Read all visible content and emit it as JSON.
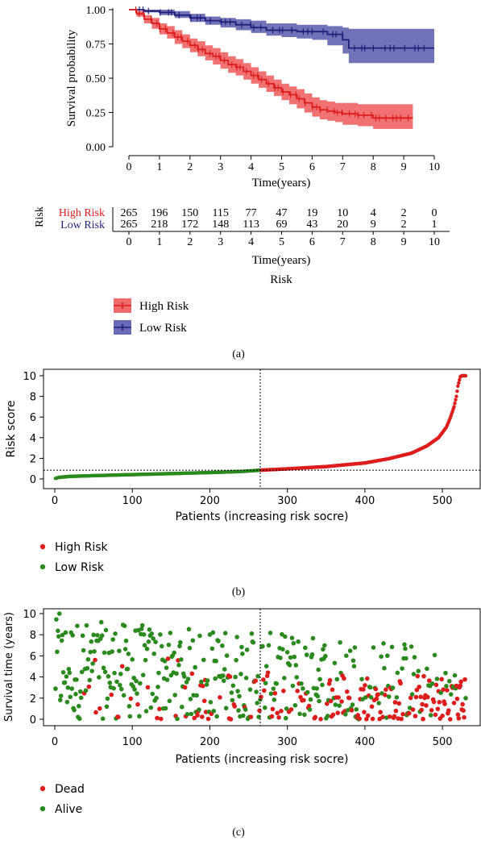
{
  "colors": {
    "high": "#dd1c1c",
    "low": "#1f1f7a",
    "high_band": "#ef6a6a",
    "low_band": "#6a6ab4",
    "alive": "#2a8a1e",
    "dead": "#dd1c1c",
    "axis": "#000000"
  },
  "panel_a": {
    "caption": "(a)",
    "km": {
      "type": "line",
      "xlabel": "Time(years)",
      "ylabel": "Survival probability",
      "xticks": [
        "0",
        "1",
        "2",
        "3",
        "4",
        "5",
        "6",
        "7",
        "8",
        "9",
        "10"
      ],
      "yticks": [
        "0.00",
        "0.25",
        "0.50",
        "0.75",
        "1.00"
      ],
      "xlim": [
        0,
        10
      ],
      "ylim": [
        0,
        1
      ]
    },
    "risk_table": {
      "title": "Risk",
      "xlabel": "Time(years)",
      "rows": [
        {
          "label": "High Risk",
          "counts": [
            "265",
            "196",
            "150",
            "115",
            "77",
            "47",
            "19",
            "10",
            "4",
            "2",
            "0"
          ]
        },
        {
          "label": "Low Risk",
          "counts": [
            "265",
            "218",
            "172",
            "148",
            "113",
            "69",
            "43",
            "20",
            "9",
            "2",
            "1"
          ]
        }
      ]
    },
    "legend": {
      "title": "Risk",
      "items": [
        "High Risk",
        "Low Risk"
      ]
    }
  },
  "panel_b": {
    "caption": "(b)",
    "xlabel": "Patients (increasing risk socre)",
    "ylabel": "Risk score",
    "xticks": [
      "0",
      "100",
      "200",
      "300",
      "400",
      "500"
    ],
    "yticks": [
      "0",
      "2",
      "4",
      "6",
      "8",
      "10"
    ],
    "legend": [
      "High Risk",
      "Low Risk"
    ]
  },
  "panel_c": {
    "caption": "(c)",
    "xlabel": "Patients (increasing risk socre)",
    "ylabel": "Survival time (years)",
    "xticks": [
      "0",
      "100",
      "200",
      "300",
      "400",
      "500"
    ],
    "yticks": [
      "0",
      "2",
      "4",
      "6",
      "8",
      "10"
    ],
    "legend": [
      "Dead",
      "Alive"
    ]
  },
  "chart_data": [
    {
      "type": "line",
      "title": "",
      "xlabel": "Time(years)",
      "ylabel": "Survival probability",
      "xlim": [
        0,
        10
      ],
      "ylim": [
        0,
        1
      ],
      "series": [
        {
          "name": "High Risk",
          "x": [
            0,
            0.25,
            0.5,
            0.75,
            1,
            1.25,
            1.5,
            1.75,
            2,
            2.25,
            2.5,
            2.75,
            3,
            3.25,
            3.5,
            3.75,
            4,
            4.25,
            4.5,
            4.75,
            5,
            5.25,
            5.5,
            5.75,
            6,
            6.25,
            6.5,
            6.75,
            7,
            7.5,
            8,
            8.5,
            9,
            9.3
          ],
          "y": [
            1,
            0.97,
            0.93,
            0.9,
            0.86,
            0.83,
            0.8,
            0.77,
            0.74,
            0.71,
            0.68,
            0.66,
            0.63,
            0.6,
            0.58,
            0.55,
            0.52,
            0.49,
            0.46,
            0.43,
            0.4,
            0.38,
            0.35,
            0.32,
            0.29,
            0.27,
            0.26,
            0.25,
            0.24,
            0.23,
            0.21,
            0.21,
            0.21,
            0.21
          ],
          "ci_lower": [
            1,
            0.95,
            0.9,
            0.86,
            0.82,
            0.79,
            0.75,
            0.72,
            0.69,
            0.66,
            0.63,
            0.6,
            0.57,
            0.54,
            0.52,
            0.49,
            0.46,
            0.43,
            0.4,
            0.37,
            0.34,
            0.31,
            0.28,
            0.25,
            0.22,
            0.2,
            0.19,
            0.18,
            0.16,
            0.15,
            0.13,
            0.13,
            0.13,
            0.13
          ],
          "ci_upper": [
            1,
            0.99,
            0.96,
            0.94,
            0.9,
            0.88,
            0.85,
            0.82,
            0.79,
            0.77,
            0.74,
            0.72,
            0.69,
            0.66,
            0.64,
            0.61,
            0.58,
            0.55,
            0.52,
            0.49,
            0.46,
            0.44,
            0.42,
            0.39,
            0.36,
            0.34,
            0.33,
            0.32,
            0.32,
            0.31,
            0.31,
            0.31,
            0.31,
            0.31
          ]
        },
        {
          "name": "Low Risk",
          "x": [
            0,
            0.5,
            1,
            1.5,
            2,
            2.5,
            3,
            3.5,
            4,
            4.5,
            5,
            5.5,
            6,
            6.5,
            7,
            7.2,
            8,
            9,
            10
          ],
          "y": [
            1,
            0.99,
            0.98,
            0.96,
            0.94,
            0.92,
            0.91,
            0.89,
            0.87,
            0.85,
            0.85,
            0.84,
            0.84,
            0.82,
            0.78,
            0.72,
            0.72,
            0.72,
            0.72
          ],
          "ci_lower": [
            1,
            0.98,
            0.96,
            0.94,
            0.91,
            0.89,
            0.87,
            0.85,
            0.83,
            0.81,
            0.8,
            0.79,
            0.78,
            0.74,
            0.68,
            0.61,
            0.61,
            0.61,
            0.61
          ],
          "ci_upper": [
            1,
            1,
            1,
            0.99,
            0.97,
            0.95,
            0.94,
            0.93,
            0.92,
            0.9,
            0.9,
            0.89,
            0.89,
            0.88,
            0.87,
            0.86,
            0.86,
            0.86,
            0.86
          ]
        }
      ]
    },
    {
      "type": "scatter",
      "title": "",
      "xlabel": "Patients (increasing risk socre)",
      "ylabel": "Risk score",
      "xlim": [
        0,
        530
      ],
      "ylim": [
        0,
        10
      ],
      "cutoff_index": 265,
      "cutoff_value": 0.85,
      "curve_knots": {
        "x": [
          1,
          5,
          20,
          50,
          100,
          150,
          200,
          240,
          265,
          300,
          350,
          400,
          430,
          460,
          480,
          495,
          505,
          510,
          515,
          518,
          520,
          523,
          525,
          530
        ],
        "y": [
          0.05,
          0.15,
          0.25,
          0.32,
          0.42,
          0.52,
          0.62,
          0.72,
          0.85,
          0.98,
          1.2,
          1.55,
          1.95,
          2.5,
          3.2,
          4.0,
          5.0,
          5.9,
          7.0,
          8.0,
          9.0,
          9.9,
          10.0,
          10.0
        ]
      },
      "series": [
        {
          "name": "High Risk",
          "index_range": [
            266,
            530
          ]
        },
        {
          "name": "Low Risk",
          "index_range": [
            1,
            265
          ]
        }
      ]
    },
    {
      "type": "scatter",
      "title": "",
      "xlabel": "Patients (increasing risk socre)",
      "ylabel": "Survival time (years)",
      "xlim": [
        0,
        530
      ],
      "ylim": [
        0,
        10
      ],
      "n_points": 530,
      "description_of_values": "Survival time ranges 0–10 years across patients; dead (red) points concentrate at high risk indices and short times, alive (green) points dominate low indices.",
      "series": [
        {
          "name": "Dead"
        },
        {
          "name": "Alive"
        }
      ]
    }
  ]
}
